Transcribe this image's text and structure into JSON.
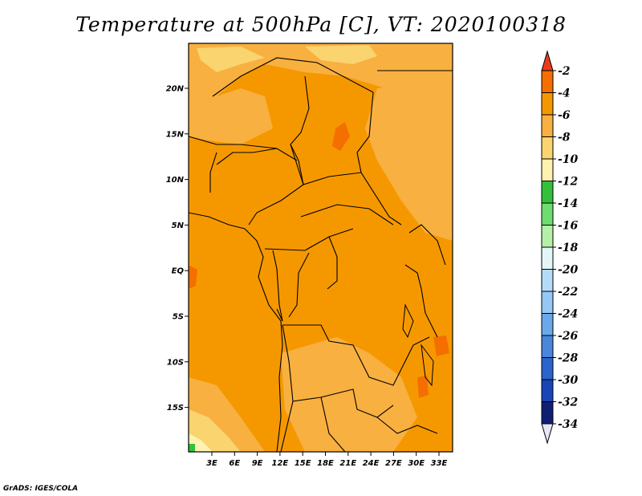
{
  "title": "Temperature at 500hPa [C], VT: 2020100318",
  "footer": "GrADS: IGES/COLA",
  "map": {
    "lon_ticks": [
      "3E",
      "6E",
      "9E",
      "12E",
      "15E",
      "18E",
      "21E",
      "24E",
      "27E",
      "30E",
      "33E"
    ],
    "lat_ticks": [
      "20N",
      "15N",
      "10N",
      "5N",
      "EQ",
      "5S",
      "10S",
      "15S"
    ]
  },
  "colorbar": {
    "labels": [
      "-2",
      "-4",
      "-6",
      "-8",
      "-10",
      "-12",
      "-14",
      "-16",
      "-18",
      "-20",
      "-22",
      "-24",
      "-26",
      "-28",
      "-30",
      "-32",
      "-34"
    ],
    "colors": [
      "#e83c1e",
      "#f56e00",
      "#f59800",
      "#f8b040",
      "#fad46e",
      "#fff1b0",
      "#33c13c",
      "#6fdc6f",
      "#b5f0a8",
      "#e3f6f6",
      "#b4dcf8",
      "#95c8f5",
      "#6aa8ea",
      "#4a86dc",
      "#2a64cc",
      "#1845b8",
      "#0f1f72"
    ],
    "top_arrow_color": "#e83c1e",
    "bottom_arrow_color": "#e6e6f5"
  }
}
